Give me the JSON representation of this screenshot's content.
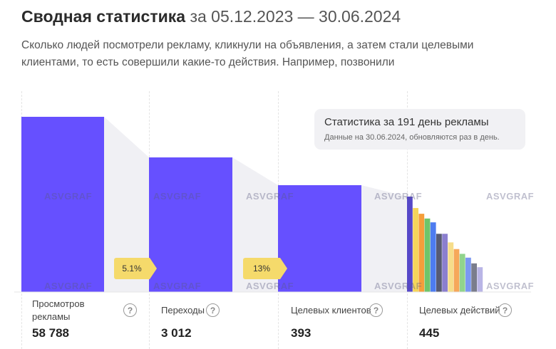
{
  "header": {
    "title": "Сводная статистика",
    "date_range": "за 05.12.2023 — 30.06.2024",
    "description": "Сколько людей посмотрели рекламу, кликнули на объявления, а затем стали целевыми клиентами, то есть совершили какие-то действия. Например, позвонили"
  },
  "info_card": {
    "title": "Статистика за 191 день рекламы",
    "note": "Данные на 30.06.2024, обновляются раз в день."
  },
  "conversions": [
    {
      "label": "5.1%"
    },
    {
      "label": "13%"
    }
  ],
  "stages": [
    {
      "label": "Просмотров рекламы",
      "value": "58 788"
    },
    {
      "label": "Переходы",
      "value": "3 012"
    },
    {
      "label": "Целевых клиентов",
      "value": "393"
    },
    {
      "label": "Целевых действий",
      "value": "445"
    }
  ],
  "help_icon": "?",
  "watermark": "ASVGRAF",
  "colors": {
    "primary_bar": "#6650ff",
    "funnel_shade": "#f0f0f4",
    "badge": "#f5da6b",
    "action_bars": [
      "#5648c8",
      "#f5d55a",
      "#f59e3a",
      "#6fc56a",
      "#4d7cf0",
      "#575b73",
      "#8b7fcf",
      "#f6dd8a",
      "#f6a85a",
      "#91d48c",
      "#7b98f2",
      "#7a7d8c",
      "#b9b5e6"
    ]
  },
  "chart_data": {
    "type": "bar",
    "categories": [
      "Просмотров рекламы",
      "Переходы",
      "Целевых клиентов",
      "Целевых действий"
    ],
    "values": [
      58788,
      3012,
      393,
      445
    ],
    "conversion_rates": [
      "5.1%",
      "13%"
    ],
    "action_breakdown_relative": [
      1.0,
      0.88,
      0.82,
      0.77,
      0.73,
      0.61,
      0.61,
      0.52,
      0.45,
      0.4,
      0.36,
      0.3,
      0.26
    ],
    "axes": "hidden",
    "grid": false
  }
}
